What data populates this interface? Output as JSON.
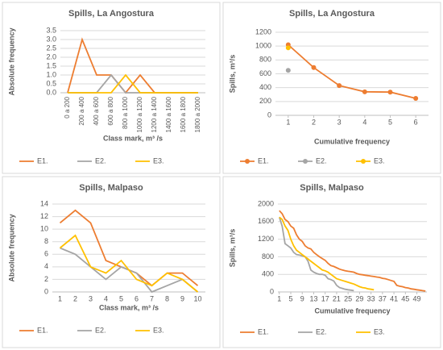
{
  "chart_data": [
    {
      "type": "line",
      "title": "Spills, La Angostura",
      "x_label": "Class mark, m³ /s",
      "y_label": "Absolute frequency",
      "categories": [
        "0 a 200",
        "200 a 400",
        "400 a 600",
        "600 a 800",
        "800 a 1000",
        "1000 a 1200",
        "1200 a 1400",
        "1400 a 1600",
        "1600 a 1800",
        "1800 a 2000"
      ],
      "series": [
        {
          "name": "E1.",
          "color": "#ed7d31",
          "values": [
            0,
            3,
            1,
            1,
            0,
            1,
            0,
            0,
            0,
            0
          ]
        },
        {
          "name": "E2.",
          "color": "#a5a5a5",
          "values": [
            0,
            0,
            0,
            1,
            0,
            0,
            0,
            0,
            0,
            0
          ]
        },
        {
          "name": "E3.",
          "color": "#ffc000",
          "values": [
            0,
            0,
            0,
            0,
            1,
            0,
            0,
            0,
            0,
            0
          ]
        }
      ],
      "ylim": [
        0,
        3.5
      ],
      "yticks": [
        {
          "value": 0,
          "label": "0.0"
        },
        0.5,
        {
          "value": 1,
          "label": "1.0"
        },
        1.5,
        {
          "value": 2,
          "label": "2.0"
        },
        2.5,
        {
          "value": 3,
          "label": "3.0"
        },
        3.5
      ],
      "grid": true,
      "legend": "bottom"
    },
    {
      "type": "line",
      "title": "Spills, La Angostura",
      "x_label": "Cumulative frequency",
      "y_label": "Spills, m³/s",
      "x": [
        1,
        2,
        3,
        4,
        5,
        6
      ],
      "series": [
        {
          "name": "E1.",
          "color": "#ed7d31",
          "values": [
            1020,
            690,
            430,
            340,
            335,
            245
          ]
        },
        {
          "name": "E2.",
          "color": "#a5a5a5",
          "values": [
            650,
            null,
            null,
            null,
            null,
            null
          ]
        },
        {
          "name": "E3.",
          "color": "#ffc000",
          "values": [
            975,
            null,
            null,
            null,
            null,
            null
          ]
        }
      ],
      "xlim": [
        0.5,
        6.5
      ],
      "xticks": [
        1,
        2,
        3,
        4,
        5,
        6
      ],
      "ylim": [
        0,
        1200
      ],
      "yticks": [
        0,
        200,
        400,
        600,
        800,
        1000,
        1200
      ],
      "markers": true,
      "grid": true,
      "legend": "bottom"
    },
    {
      "type": "line",
      "title": "Spills, Malpaso",
      "x_label": "Class mark, m³ /s",
      "y_label": "Absolute frequency",
      "categories": [
        "1",
        "2",
        "3",
        "4",
        "5",
        "6",
        "7",
        "8",
        "9",
        "10"
      ],
      "series": [
        {
          "name": "E1.",
          "color": "#ed7d31",
          "values": [
            11,
            13,
            11,
            5,
            4,
            3,
            1,
            3,
            3,
            1
          ]
        },
        {
          "name": "E2.",
          "color": "#a5a5a5",
          "values": [
            7,
            6,
            4,
            2,
            4,
            3,
            0,
            1,
            2,
            0
          ]
        },
        {
          "name": "E3.",
          "color": "#ffc000",
          "values": [
            7,
            9,
            4,
            3,
            5,
            2,
            1,
            3,
            2,
            0
          ]
        }
      ],
      "ylim": [
        0,
        14
      ],
      "yticks": [
        0,
        2,
        4,
        6,
        8,
        10,
        12,
        14
      ],
      "grid": true,
      "legend": "bottom"
    },
    {
      "type": "line",
      "title": "Spills, Malpaso",
      "x_label": "Cumulative frequency",
      "y_label": "Spills, m³/s",
      "x": [
        1,
        2,
        3,
        4,
        5,
        6,
        7,
        8,
        9,
        10,
        11,
        12,
        13,
        14,
        15,
        16,
        17,
        18,
        19,
        20,
        21,
        22,
        23,
        24,
        25,
        26,
        27,
        28,
        29,
        30,
        31,
        32,
        33,
        34,
        35,
        36,
        37,
        38,
        39,
        40,
        41,
        42,
        43,
        44,
        45,
        46,
        47,
        48,
        49,
        50,
        51,
        52
      ],
      "series": [
        {
          "name": "E1.",
          "color": "#ed7d31",
          "values": [
            1850,
            1780,
            1650,
            1600,
            1500,
            1450,
            1300,
            1200,
            1150,
            1050,
            1000,
            980,
            900,
            850,
            800,
            760,
            720,
            650,
            600,
            580,
            550,
            520,
            500,
            480,
            470,
            460,
            450,
            420,
            400,
            390,
            380,
            370,
            360,
            350,
            340,
            330,
            310,
            300,
            280,
            260,
            240,
            150,
            130,
            120,
            100,
            90,
            70,
            60,
            50,
            40,
            30,
            20
          ]
        },
        {
          "name": "E2.",
          "color": "#a5a5a5",
          "values": [
            1700,
            1500,
            1100,
            1050,
            1000,
            900,
            850,
            840,
            820,
            800,
            700,
            500,
            450,
            420,
            400,
            400,
            380,
            300,
            280,
            250,
            150,
            100,
            80,
            60,
            50,
            40,
            30,
            null,
            null,
            null,
            null,
            null,
            null,
            null,
            null,
            null,
            null,
            null,
            null,
            null,
            null,
            null,
            null,
            null,
            null,
            null,
            null,
            null,
            null,
            null,
            null,
            null
          ]
        },
        {
          "name": "E3.",
          "color": "#ffc000",
          "values": [
            1700,
            1650,
            1500,
            1400,
            1200,
            1050,
            950,
            900,
            850,
            800,
            750,
            700,
            650,
            600,
            550,
            500,
            480,
            450,
            400,
            350,
            300,
            280,
            260,
            240,
            220,
            200,
            180,
            150,
            120,
            100,
            90,
            70,
            60,
            50,
            null,
            null,
            null,
            null,
            null,
            null,
            null,
            null,
            null,
            null,
            null,
            null,
            null,
            null,
            null,
            null,
            null,
            null
          ]
        }
      ],
      "xlim": [
        0.5,
        52.5
      ],
      "xticks": [
        1,
        5,
        9,
        13,
        17,
        21,
        25,
        29,
        33,
        37,
        41,
        45,
        49
      ],
      "ylim": [
        0,
        2000
      ],
      "yticks": [
        0,
        400,
        800,
        1200,
        1600,
        2000
      ],
      "grid": true,
      "legend": "bottom"
    }
  ]
}
